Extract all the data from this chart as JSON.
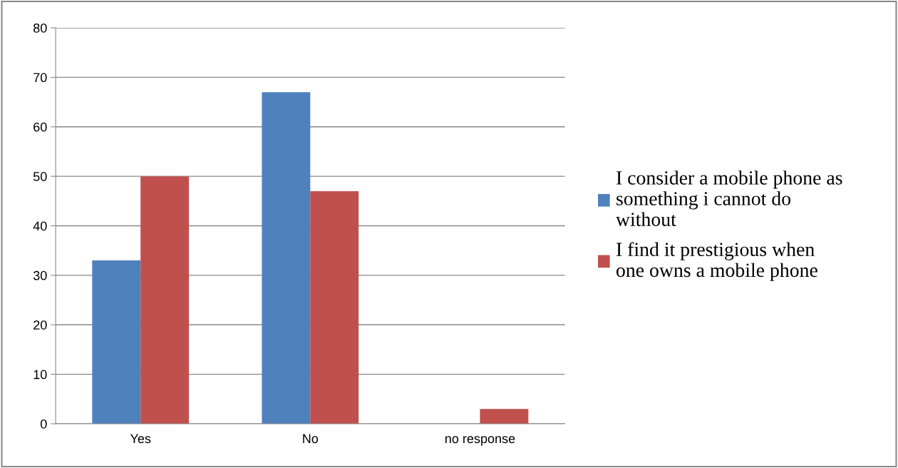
{
  "chart_data": {
    "type": "bar",
    "categories": [
      "Yes",
      "No",
      "no response"
    ],
    "series": [
      {
        "name": "I consider a mobile phone as something i cannot do without",
        "color": "#4f81bd",
        "values": [
          33,
          67,
          0
        ]
      },
      {
        "name": "I find it prestigious when one owns a mobile phone",
        "color": "#c0504d",
        "values": [
          50,
          47,
          3
        ]
      }
    ],
    "ylim": [
      0,
      80
    ],
    "yticks": [
      0,
      10,
      20,
      30,
      40,
      50,
      60,
      70,
      80
    ],
    "grid": "y",
    "legend": "right"
  }
}
